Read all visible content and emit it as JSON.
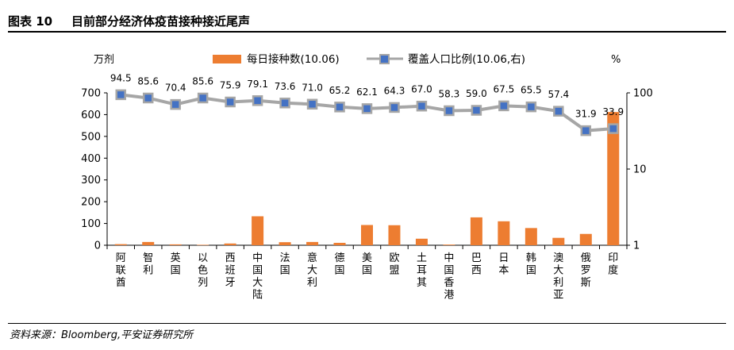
{
  "figure": {
    "number": "图表 10",
    "title": "目前部分经济体疫苗接种接近尾声",
    "source": "资料来源：Bloomberg,平安证券研究所"
  },
  "chart_data": {
    "type": "bar",
    "categories": [
      "阿联酋",
      "智利",
      "英国",
      "以色列",
      "西班牙",
      "中国大陆",
      "法国",
      "意大利",
      "德国",
      "美国",
      "欧盟",
      "土耳其",
      "中国香港",
      "巴西",
      "日本",
      "韩国",
      "澳大利亚",
      "俄罗斯",
      "印度"
    ],
    "series": [
      {
        "name": "每日接种数(10.06)",
        "type": "bar",
        "axis": "left",
        "color": "#ED7D31",
        "values": [
          5,
          15,
          4,
          2,
          8,
          133,
          14,
          15,
          11,
          93,
          92,
          30,
          3,
          128,
          110,
          79,
          34,
          52,
          612
        ]
      },
      {
        "name": "覆盖人口比例(10.06,右)",
        "type": "line",
        "axis": "right",
        "color": "#A6A6A6",
        "marker_color": "#4472C4",
        "values": [
          94.5,
          85.6,
          70.4,
          85.6,
          75.9,
          79.1,
          73.6,
          71.0,
          65.2,
          62.1,
          64.3,
          67.0,
          58.3,
          59.0,
          67.5,
          65.5,
          57.4,
          31.9,
          33.9
        ],
        "labels": [
          "94.5",
          "85.6",
          "70.4",
          "85.6",
          "75.9",
          "79.1",
          "73.6",
          "71.0",
          "65.2",
          "62.1",
          "64.3",
          "67.0",
          "58.3",
          "59.0",
          "67.5",
          "65.5",
          "57.4",
          "31.9",
          "33.9"
        ]
      }
    ],
    "left_axis": {
      "unit": "万剂",
      "range": [
        0,
        700
      ],
      "ticks": [
        "0",
        "100",
        "200",
        "300",
        "400",
        "500",
        "600",
        "700"
      ]
    },
    "right_axis": {
      "unit": "%",
      "scale": "log",
      "range": [
        1,
        100
      ],
      "ticks": [
        "1",
        "10",
        "100"
      ]
    },
    "legend_position": "top",
    "grid": false
  }
}
